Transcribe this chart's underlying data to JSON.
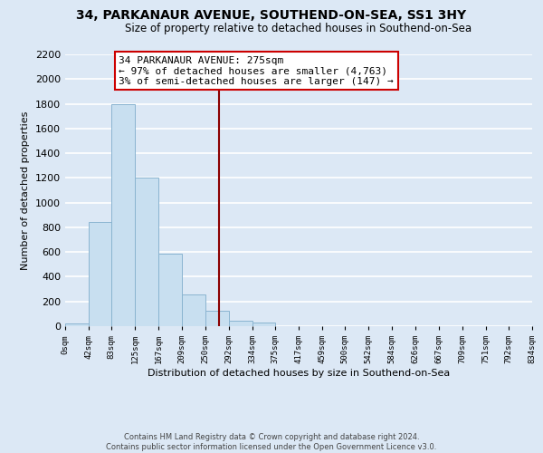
{
  "title1": "34, PARKANAUR AVENUE, SOUTHEND-ON-SEA, SS1 3HY",
  "title2": "Size of property relative to detached houses in Southend-on-Sea",
  "xlabel": "Distribution of detached houses by size in Southend-on-Sea",
  "ylabel": "Number of detached properties",
  "bar_edges": [
    0,
    42,
    83,
    125,
    167,
    209,
    250,
    292,
    334,
    375,
    417,
    459,
    500,
    542,
    584,
    626,
    667,
    709,
    751,
    792,
    834
  ],
  "bar_heights": [
    25,
    840,
    1800,
    1200,
    590,
    255,
    125,
    45,
    30,
    0,
    0,
    0,
    0,
    0,
    0,
    0,
    0,
    0,
    0,
    0
  ],
  "bar_color": "#c8dff0",
  "bar_edge_color": "#8ab4d0",
  "vline_x": 275,
  "vline_color": "#8b0000",
  "annotation_title": "34 PARKANAUR AVENUE: 275sqm",
  "annotation_line1": "← 97% of detached houses are smaller (4,763)",
  "annotation_line2": "3% of semi-detached houses are larger (147) →",
  "tick_labels": [
    "0sqm",
    "42sqm",
    "83sqm",
    "125sqm",
    "167sqm",
    "209sqm",
    "250sqm",
    "292sqm",
    "334sqm",
    "375sqm",
    "417sqm",
    "459sqm",
    "500sqm",
    "542sqm",
    "584sqm",
    "626sqm",
    "667sqm",
    "709sqm",
    "751sqm",
    "792sqm",
    "834sqm"
  ],
  "ylim": [
    0,
    2200
  ],
  "yticks": [
    0,
    200,
    400,
    600,
    800,
    1000,
    1200,
    1400,
    1600,
    1800,
    2000,
    2200
  ],
  "footer1": "Contains HM Land Registry data © Crown copyright and database right 2024.",
  "footer2": "Contains public sector information licensed under the Open Government Licence v3.0.",
  "bg_color": "#dce8f5",
  "grid_color": "white",
  "title1_fontsize": 10,
  "title2_fontsize": 8.5,
  "xlabel_fontsize": 8,
  "ylabel_fontsize": 8,
  "tick_fontsize": 6.5,
  "footer_fontsize": 6,
  "annot_fontsize": 8
}
